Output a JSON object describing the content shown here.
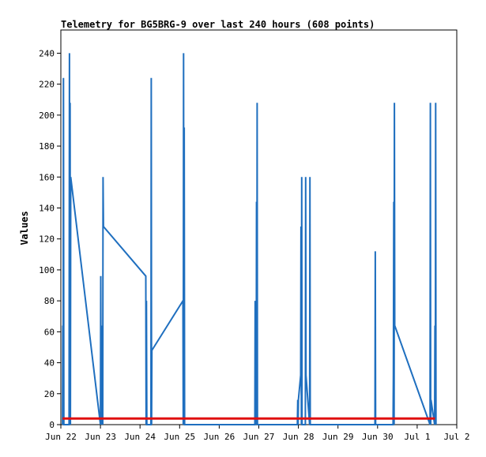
{
  "chart_data": {
    "type": "line",
    "title": "Telemetry for BG5BRG-9 over last 240 hours (608 points)",
    "xlabel": "",
    "ylabel": "Values",
    "x_unit": "hours since Jun 22 00:00",
    "xlim": [
      0,
      240
    ],
    "ylim": [
      0,
      255
    ],
    "yticks": [
      0,
      20,
      40,
      60,
      80,
      100,
      120,
      140,
      160,
      180,
      200,
      220,
      240
    ],
    "xticks": [
      {
        "label": "Jun 22",
        "x": 0
      },
      {
        "label": "Jun 23",
        "x": 24
      },
      {
        "label": "Jun 24",
        "x": 48
      },
      {
        "label": "Jun 25",
        "x": 72
      },
      {
        "label": "Jun 26",
        "x": 96
      },
      {
        "label": "Jun 27",
        "x": 120
      },
      {
        "label": "Jun 28",
        "x": 144
      },
      {
        "label": "Jun 29",
        "x": 168
      },
      {
        "label": "Jun 30",
        "x": 192
      },
      {
        "label": "Jul 1",
        "x": 216
      },
      {
        "label": "Jul 2",
        "x": 240
      }
    ],
    "grid": false,
    "colors": {
      "series": "#1f6fbf",
      "baseline": "#e01010"
    },
    "series": [
      {
        "points": [
          [
            1.0,
            0
          ],
          [
            1.2,
            64
          ],
          [
            1.4,
            0
          ],
          [
            1.6,
            224
          ],
          [
            1.8,
            0
          ],
          [
            5.0,
            0
          ],
          [
            5.2,
            240
          ],
          [
            5.4,
            0
          ],
          [
            5.6,
            208
          ],
          [
            5.8,
            0
          ],
          [
            6.0,
            160
          ],
          [
            24.0,
            0
          ],
          [
            24.2,
            96
          ],
          [
            24.4,
            0
          ],
          [
            24.6,
            64
          ],
          [
            24.8,
            26
          ],
          [
            25.0,
            0
          ],
          [
            25.2,
            64
          ],
          [
            25.4,
            0
          ],
          [
            25.6,
            160
          ],
          [
            25.8,
            128
          ],
          [
            51.5,
            96
          ],
          [
            51.7,
            0
          ],
          [
            51.9,
            80
          ],
          [
            52.1,
            0
          ],
          [
            54.6,
            0
          ],
          [
            54.8,
            224
          ],
          [
            55.0,
            0
          ],
          [
            55.2,
            48
          ],
          [
            74.0,
            80
          ],
          [
            74.2,
            0
          ],
          [
            74.4,
            240
          ],
          [
            74.6,
            0
          ],
          [
            74.8,
            192
          ],
          [
            75.0,
            0
          ],
          [
            117.6,
            0
          ],
          [
            117.8,
            80
          ],
          [
            118.0,
            0
          ],
          [
            118.2,
            48
          ],
          [
            118.4,
            0
          ],
          [
            118.6,
            144
          ],
          [
            118.8,
            0
          ],
          [
            119.0,
            208
          ],
          [
            119.2,
            0
          ],
          [
            143.4,
            0
          ],
          [
            143.6,
            16
          ],
          [
            143.8,
            0
          ],
          [
            144.0,
            16
          ],
          [
            145.4,
            32
          ],
          [
            145.6,
            128
          ],
          [
            145.8,
            0
          ],
          [
            146.0,
            160
          ],
          [
            146.2,
            0
          ],
          [
            148.2,
            0
          ],
          [
            148.4,
            160
          ],
          [
            148.6,
            32
          ],
          [
            150.8,
            0
          ],
          [
            151.0,
            160
          ],
          [
            151.2,
            0
          ],
          [
            190.4,
            0
          ],
          [
            190.6,
            112
          ],
          [
            190.8,
            0
          ],
          [
            201.4,
            0
          ],
          [
            201.6,
            32
          ],
          [
            201.8,
            144
          ],
          [
            202.0,
            0
          ],
          [
            202.2,
            208
          ],
          [
            202.4,
            64
          ],
          [
            223.8,
            0
          ],
          [
            224.0,
            208
          ],
          [
            224.2,
            0
          ],
          [
            224.4,
            16
          ],
          [
            226.6,
            0
          ],
          [
            226.8,
            64
          ],
          [
            227.0,
            0
          ],
          [
            227.2,
            208
          ],
          [
            227.4,
            0
          ]
        ]
      },
      {
        "points": [
          [
            1.0,
            4
          ],
          [
            226.8,
            4
          ]
        ]
      }
    ]
  }
}
